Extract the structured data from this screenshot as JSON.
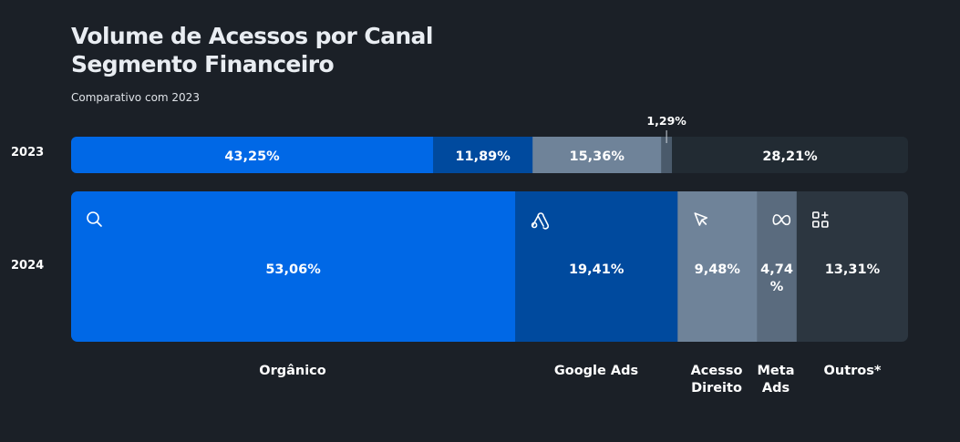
{
  "title_line1": "Volume de Acessos por Canal",
  "title_line2": "Segmento Financeiro",
  "subtitle": "Comparativo com 2023",
  "colors": {
    "background": "#1b2027",
    "organico": "#0068e6",
    "google_ads": "#004a9e",
    "acesso_direito": "#6f8399",
    "meta_ads": "#5a6b7e",
    "outros_2024": "#2c3640",
    "meta_2023": "#4a5a6b",
    "outros_2023": "#222b33"
  },
  "chart_data": {
    "type": "bar",
    "orientation": "horizontal",
    "stacked": "100%",
    "categories": [
      "Orgânico",
      "Google Ads",
      "Acesso Direito",
      "Meta Ads",
      "Outros*"
    ],
    "series": [
      {
        "name": "2023",
        "values": [
          43.25,
          11.89,
          15.36,
          1.29,
          28.21
        ],
        "labels": [
          "43,25%",
          "11,89%",
          "15,36%",
          "1,29%",
          "28,21%"
        ]
      },
      {
        "name": "2024",
        "values": [
          53.06,
          19.41,
          9.48,
          4.74,
          13.31
        ],
        "labels": [
          "53,06%",
          "19,41%",
          "9,48%",
          "4,74 %",
          "13,31%"
        ]
      }
    ],
    "category_icons": [
      "search-icon",
      "google-ads-icon",
      "cursor-icon",
      "meta-icon",
      "apps-add-icon"
    ],
    "category_labels": [
      "Orgânico",
      "Google Ads",
      "Acesso Direito",
      "Meta Ads",
      "Outros*"
    ]
  }
}
